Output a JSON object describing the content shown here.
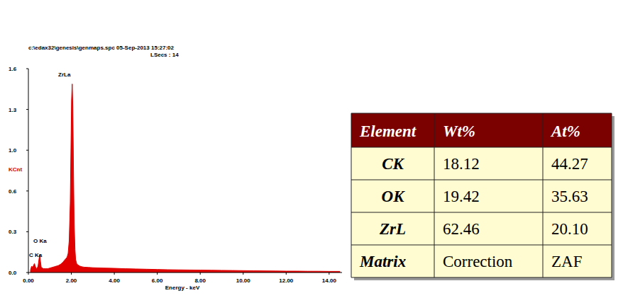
{
  "chart_data": {
    "type": "area",
    "title": "c:\\edax32\\genesis\\genmaps.spc  05-Sep-2013 15:27:02",
    "subtitle": "LSecs : 14",
    "x_label": "Energy - keV",
    "y_label": "KCnt",
    "color": "#e00000",
    "xlim": [
      0,
      14.6
    ],
    "xticks": [
      {
        "value": 0,
        "label": "0.00"
      },
      {
        "value": 2,
        "label": "2.00"
      },
      {
        "value": 4,
        "label": "4.00"
      },
      {
        "value": 6,
        "label": "6.00"
      },
      {
        "value": 8,
        "label": "8.00"
      },
      {
        "value": 10,
        "label": "10.00"
      },
      {
        "value": 12,
        "label": "12.00"
      },
      {
        "value": 14,
        "label": "14.00"
      }
    ],
    "ylim": [
      0,
      1.6
    ],
    "yticks": [
      {
        "value": 0,
        "label": "0.0"
      },
      {
        "value": 0.32,
        "label": "0.3"
      },
      {
        "value": 0.64,
        "label": "0.6"
      },
      {
        "value": 0.96,
        "label": "1.0"
      },
      {
        "value": 1.28,
        "label": "1.3"
      },
      {
        "value": 1.6,
        "label": "1.6"
      }
    ],
    "grid": false,
    "x": [
      0.1,
      0.15,
      0.2,
      0.25,
      0.28,
      0.32,
      0.36,
      0.4,
      0.45,
      0.5,
      0.53,
      0.56,
      0.6,
      0.7,
      0.8,
      0.9,
      1.0,
      1.1,
      1.2,
      1.3,
      1.4,
      1.5,
      1.6,
      1.7,
      1.75,
      1.8,
      1.85,
      1.9,
      1.95,
      1.98,
      2.01,
      2.04,
      2.07,
      2.1,
      2.13,
      2.17,
      2.2,
      2.25,
      2.3,
      2.4,
      2.5,
      2.6,
      2.8,
      3.0,
      3.5,
      4.0,
      4.5,
      5.0,
      5.5,
      6.0,
      6.5,
      7.0,
      7.5,
      8.0,
      8.5,
      9.0,
      9.5,
      10.0,
      10.5,
      11.0,
      11.5,
      12.0,
      12.5,
      13.0,
      13.5,
      14.0,
      14.5
    ],
    "values": [
      0.02,
      0.05,
      0.04,
      0.06,
      0.07,
      0.05,
      0.03,
      0.03,
      0.05,
      0.11,
      0.14,
      0.09,
      0.04,
      0.03,
      0.03,
      0.03,
      0.035,
      0.04,
      0.045,
      0.05,
      0.055,
      0.065,
      0.08,
      0.1,
      0.11,
      0.12,
      0.15,
      0.25,
      0.55,
      0.95,
      1.35,
      1.48,
      1.3,
      0.8,
      0.4,
      0.18,
      0.1,
      0.07,
      0.06,
      0.05,
      0.045,
      0.042,
      0.04,
      0.038,
      0.035,
      0.033,
      0.03,
      0.028,
      0.026,
      0.024,
      0.022,
      0.021,
      0.02,
      0.019,
      0.018,
      0.017,
      0.016,
      0.015,
      0.014,
      0.013,
      0.012,
      0.011,
      0.011,
      0.01,
      0.01,
      0.009,
      0.009
    ],
    "annotations": [
      {
        "text": "ZrLa",
        "x": 1.39,
        "y": 1.54
      },
      {
        "text": "O Ka",
        "x": 0.23,
        "y": 0.233
      },
      {
        "text": "C Ka",
        "x": 0.03,
        "y": 0.122
      }
    ]
  },
  "table": {
    "header": [
      "Element",
      "Wt%",
      "At%"
    ],
    "rows": [
      [
        "CK",
        "18.12",
        "44.27"
      ],
      [
        "OK",
        "19.42",
        "35.63"
      ],
      [
        "ZrL",
        "62.46",
        "20.10"
      ],
      [
        "Matrix",
        "Correction",
        "ZAF"
      ]
    ]
  }
}
